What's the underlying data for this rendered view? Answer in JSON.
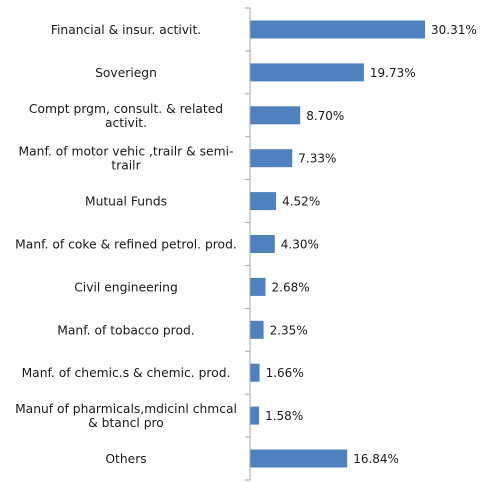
{
  "chart_data": {
    "type": "bar",
    "orientation": "horizontal",
    "categories": [
      [
        "Financial & insur. activit."
      ],
      [
        "Soveriegn"
      ],
      [
        "Compt prgm, consult. & related",
        "activit."
      ],
      [
        "Manf. of motor vehic ,trailr & semi-",
        "trailr"
      ],
      [
        "Mutual Funds"
      ],
      [
        "Manf. of coke & refined petrol. prod."
      ],
      [
        "Civil engineering"
      ],
      [
        "Manf. of tobacco prod."
      ],
      [
        "Manf. of chemic.s & chemic. prod."
      ],
      [
        "Manuf of pharmicals,mdicinl chmcal",
        "& btancl pro"
      ],
      [
        "Others"
      ]
    ],
    "values": [
      30.31,
      19.73,
      8.7,
      7.33,
      4.52,
      4.3,
      2.68,
      2.35,
      1.66,
      1.58,
      16.84
    ],
    "value_labels": [
      "30.31%",
      "19.73%",
      "8.70%",
      "7.33%",
      "4.52%",
      "4.30%",
      "2.68%",
      "2.35%",
      "1.66%",
      "1.58%",
      "16.84%"
    ],
    "xlim": [
      0,
      35
    ],
    "grid": false,
    "legend": "none",
    "bar_color": "#4F81BD",
    "axis_color": "#A6A6A6"
  }
}
